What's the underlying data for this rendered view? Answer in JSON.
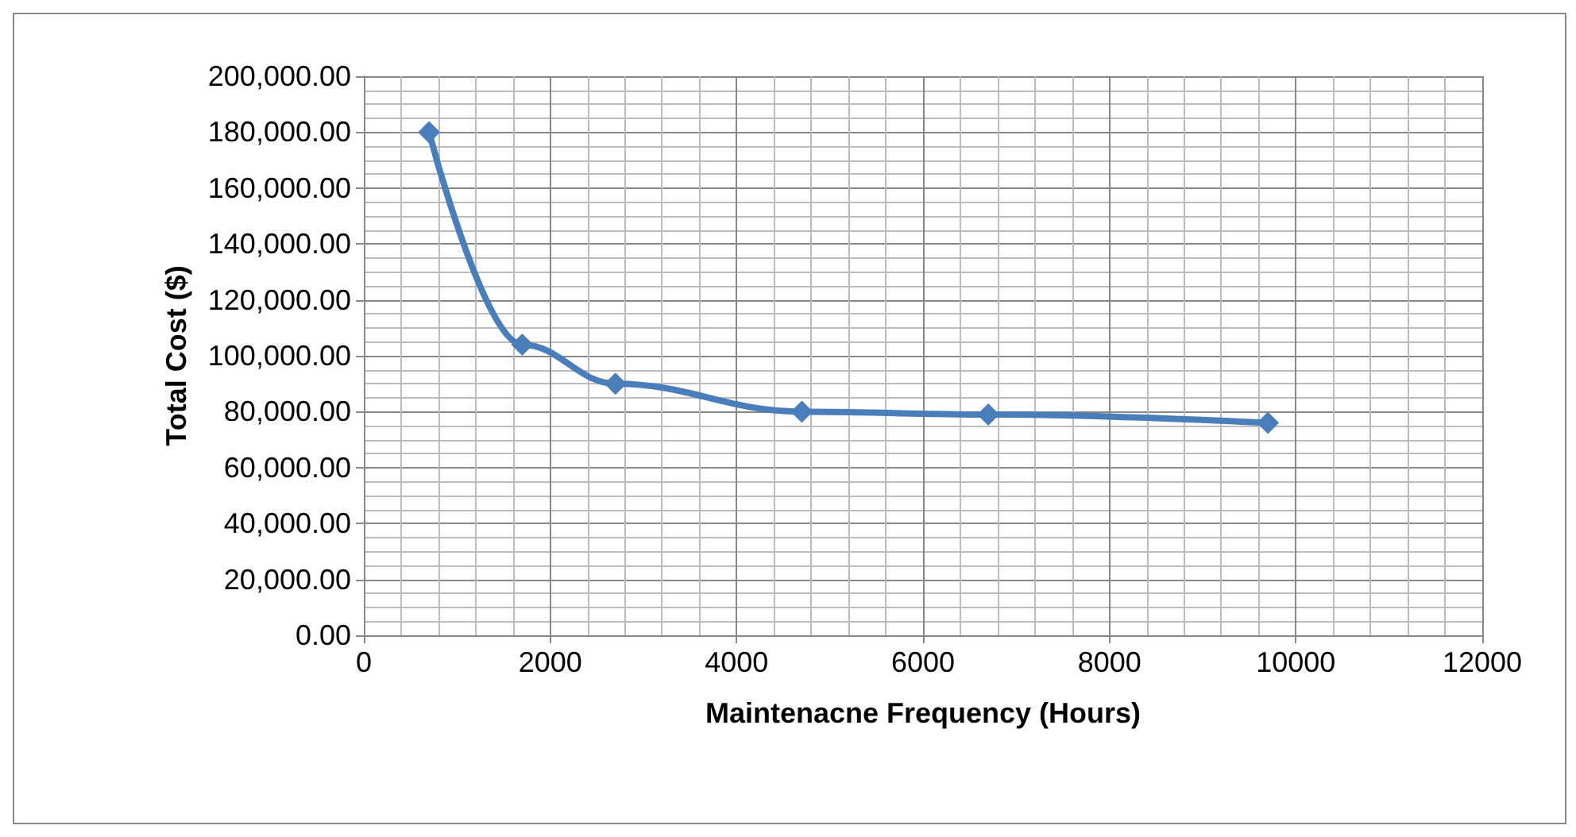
{
  "chart_data": {
    "type": "line",
    "xlabel": "Maintenacne Frequency (Hours)",
    "ylabel": "Total Cost ($)",
    "x": [
      700,
      1700,
      2700,
      4700,
      6700,
      9700
    ],
    "series": [
      {
        "color": "#4a7ebb",
        "values": [
          180000,
          104000,
          90000,
          80000,
          79000,
          76000
        ]
      }
    ],
    "xlim": [
      0,
      12000
    ],
    "xticks": [
      0,
      2000,
      4000,
      6000,
      8000,
      10000,
      12000
    ],
    "ylim": [
      0,
      200000
    ],
    "yticks": [
      {
        "value": 0,
        "label": "0.00"
      },
      {
        "value": 20000,
        "label": "20,000.00"
      },
      {
        "value": 40000,
        "label": "40,000.00"
      },
      {
        "value": 60000,
        "label": "60,000.00"
      },
      {
        "value": 80000,
        "label": "80,000.00"
      },
      {
        "value": 100000,
        "label": "100,000.00"
      },
      {
        "value": 120000,
        "label": "120,000.00"
      },
      {
        "value": 140000,
        "label": "140,000.00"
      },
      {
        "value": 160000,
        "label": "160,000.00"
      },
      {
        "value": 180000,
        "label": "180,000.00"
      },
      {
        "value": 200000,
        "label": "200,000.00"
      }
    ],
    "grid": true,
    "marker": "diamond"
  }
}
